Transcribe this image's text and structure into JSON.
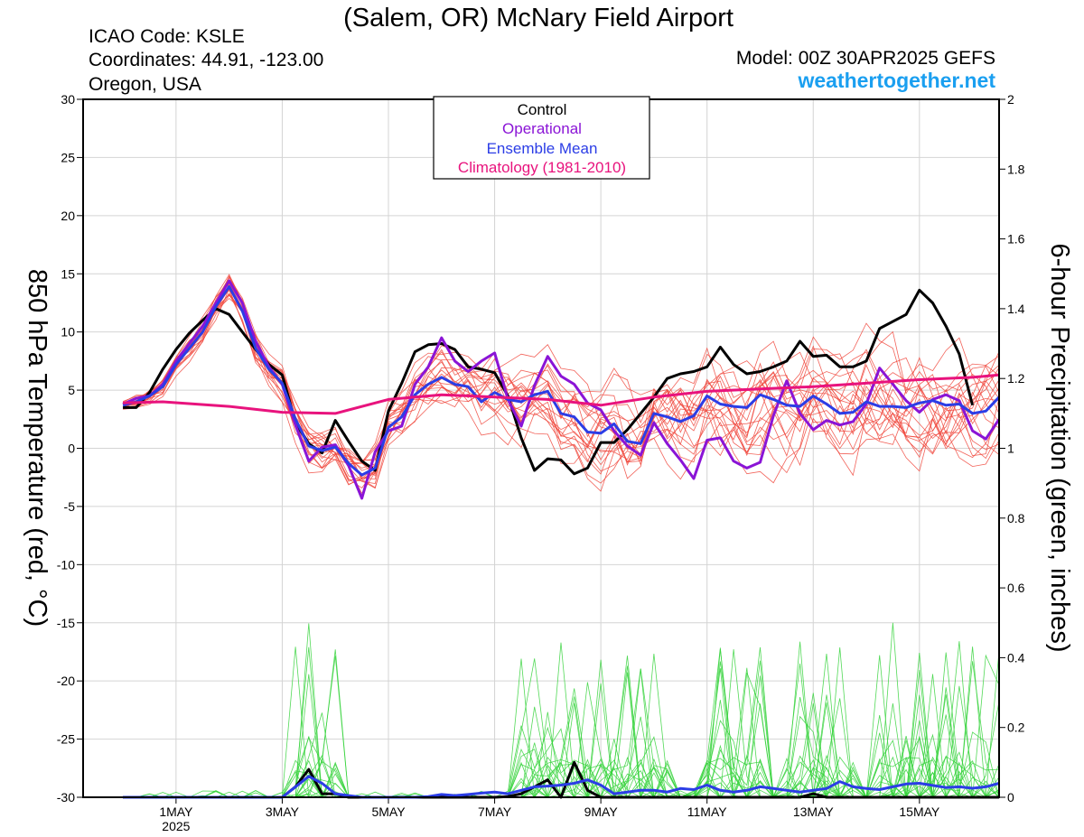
{
  "header": {
    "title": "(Salem, OR) McNary Field Airport",
    "icao": "ICAO Code: KSLE",
    "coords": "Coordinates: 44.91, -123.00",
    "region": "Oregon, USA",
    "model": "Model: 00Z 30APR2025 GEFS",
    "site": "weathertogether.net"
  },
  "legend": {
    "items": [
      {
        "label": "Control",
        "color": "#000000"
      },
      {
        "label": "Operational",
        "color": "#8a14d6"
      },
      {
        "label": "Ensemble Mean",
        "color": "#2b3de6"
      },
      {
        "label": "Climatology (1981-2010)",
        "color": "#e8137d"
      }
    ]
  },
  "colors": {
    "ensemble_temp": "#f0463c",
    "ensemble_precip": "#34d23a",
    "control": "#000000",
    "operational": "#8a14d6",
    "mean": "#2b3de6",
    "climatology": "#e8137d"
  },
  "chart_data": {
    "type": "line",
    "ylabel_left": "850 hPa Temperature (red, °C)",
    "ylabel_right": "6-hour Precipitation (green, inches)",
    "xlim_hours": [
      -18,
      396
    ],
    "ylim_left": [
      -30,
      30
    ],
    "ylim_right": [
      0,
      2
    ],
    "x_ticks": [
      {
        "label": "1MAY",
        "sub": "2025",
        "hour": 24
      },
      {
        "label": "3MAY",
        "hour": 72
      },
      {
        "label": "5MAY",
        "hour": 120
      },
      {
        "label": "7MAY",
        "hour": 168
      },
      {
        "label": "9MAY",
        "hour": 216
      },
      {
        "label": "11MAY",
        "hour": 264
      },
      {
        "label": "13MAY",
        "hour": 312
      },
      {
        "label": "15MAY",
        "hour": 360
      }
    ],
    "y_ticks_left": [
      30,
      25,
      20,
      15,
      10,
      5,
      0,
      -5,
      -10,
      -15,
      -20,
      -25,
      -30
    ],
    "y_ticks_right": [
      "2",
      "1.8",
      "1.6",
      "1.4",
      "1.2",
      "1",
      "0.8",
      "0.6",
      "0.4",
      "0.2",
      "0"
    ],
    "temperature_series": [
      {
        "name": "Control",
        "x": [
          0,
          6,
          12,
          18,
          24,
          30,
          36,
          42,
          48,
          54,
          60,
          66,
          72,
          78,
          84,
          90,
          96,
          102,
          108,
          114,
          120,
          126,
          132,
          138,
          144,
          150,
          156,
          162,
          168,
          174,
          180,
          186,
          192,
          198,
          204,
          210,
          216,
          222,
          228,
          234,
          240,
          246,
          252,
          258,
          264,
          270,
          276,
          282,
          288,
          294,
          300,
          306,
          312,
          318,
          324,
          330,
          336,
          342,
          348,
          354,
          360,
          366,
          372,
          378,
          384
        ],
        "y": [
          3.5,
          3.5,
          4.8,
          6.8,
          8.5,
          9.9,
          11,
          12,
          11.5,
          10,
          8.5,
          7.2,
          6.3,
          2.2,
          0.4,
          -0.4,
          2.4,
          0.6,
          -1.1,
          -1.9,
          3.2,
          5.6,
          8.3,
          8.9,
          9,
          8.5,
          7,
          6.8,
          6.5,
          4.5,
          0.9,
          -1.9,
          -0.9,
          -1,
          -2.2,
          -1.7,
          0.5,
          0.5,
          1.6,
          3,
          4.4,
          6,
          6.4,
          6.6,
          7,
          8.7,
          7.2,
          6.4,
          6.6,
          7,
          7.5,
          9.2,
          7.9,
          8,
          7,
          7,
          7.5,
          10.3,
          10.9,
          11.5,
          13.6,
          12.5,
          10.5,
          8.1,
          3.7
        ]
      },
      {
        "name": "Operational",
        "x": [
          0,
          6,
          12,
          18,
          24,
          30,
          36,
          42,
          48,
          54,
          60,
          66,
          72,
          78,
          84,
          90,
          96,
          102,
          108,
          114,
          120,
          126,
          132,
          138,
          144,
          150,
          156,
          162,
          168,
          174,
          180,
          186,
          192,
          198,
          204,
          210,
          216,
          222,
          228,
          234,
          240,
          246,
          252,
          258,
          264,
          270,
          276,
          282,
          288,
          294,
          300,
          306,
          312,
          318,
          324,
          330,
          336,
          342,
          348,
          354,
          360,
          366,
          372,
          378,
          384,
          390,
          396
        ],
        "y": [
          3.8,
          4.3,
          4.5,
          5.5,
          7.5,
          9,
          10.5,
          12.5,
          14.4,
          12.5,
          9.2,
          7,
          5.5,
          2,
          -1.1,
          0.1,
          0.3,
          -1.5,
          -4.3,
          -0.3,
          1.5,
          1.9,
          5.5,
          7,
          9.5,
          7.5,
          6.6,
          7.5,
          8.2,
          4.2,
          1.9,
          5.4,
          7.9,
          6.2,
          5.5,
          3.9,
          3.3,
          1.5,
          0.2,
          -0.6,
          2.2,
          0.4,
          -1,
          -2.6,
          0.7,
          0.9,
          -1.1,
          -1.7,
          -1.2,
          2.8,
          5.8,
          3,
          1.6,
          2.4,
          2,
          2.3,
          3.8,
          6.9,
          5.5,
          4.1,
          3.1,
          4.2,
          4.6,
          4.1,
          1.5,
          0.8,
          2.5
        ]
      },
      {
        "name": "Ensemble Mean",
        "x": [
          0,
          6,
          12,
          18,
          24,
          30,
          36,
          42,
          48,
          54,
          60,
          66,
          72,
          78,
          84,
          90,
          96,
          102,
          108,
          114,
          120,
          126,
          132,
          138,
          144,
          150,
          156,
          162,
          168,
          174,
          180,
          186,
          192,
          198,
          204,
          210,
          216,
          222,
          228,
          234,
          240,
          246,
          252,
          258,
          264,
          270,
          276,
          282,
          288,
          294,
          300,
          306,
          312,
          318,
          324,
          330,
          336,
          342,
          348,
          354,
          360,
          366,
          372,
          378,
          384,
          390,
          396
        ],
        "y": [
          3.7,
          4,
          4.5,
          5.3,
          7.2,
          8.6,
          10,
          12.2,
          13.9,
          11.8,
          8.6,
          6.8,
          5.6,
          2.5,
          0.2,
          -0.2,
          0.1,
          -1.3,
          -2.3,
          -1.7,
          1.8,
          2.7,
          4.6,
          5.5,
          6.1,
          5.5,
          5.3,
          4,
          4.8,
          4.2,
          4,
          4.6,
          4.9,
          3,
          2.7,
          1.4,
          1.3,
          2.1,
          0.6,
          0.4,
          3,
          2.7,
          2.3,
          2.8,
          4.5,
          3.8,
          3.6,
          3.5,
          4.6,
          4.2,
          3.7,
          3.6,
          4.5,
          3.8,
          3,
          3.1,
          4,
          3.6,
          3.6,
          3.5,
          3.9,
          4.1,
          3.7,
          3.8,
          3,
          3.2,
          4.4
        ]
      },
      {
        "name": "Climatology (1981-2010)",
        "x": [
          0,
          18,
          48,
          72,
          96,
          120,
          144,
          168,
          192,
          216,
          240,
          264,
          288,
          312,
          336,
          360,
          384,
          396
        ],
        "y": [
          3.9,
          4,
          3.6,
          3.1,
          3,
          4.2,
          4.6,
          4.4,
          4.2,
          3.7,
          4.4,
          4.9,
          5.1,
          5.3,
          5.6,
          5.9,
          6.1,
          6.3
        ]
      }
    ],
    "precip_series": [
      {
        "name": "Control",
        "x": [
          0,
          6,
          12,
          18,
          24,
          30,
          36,
          42,
          48,
          54,
          60,
          66,
          72,
          78,
          84,
          90,
          96,
          102,
          108,
          114,
          120,
          126,
          132,
          138,
          144,
          150,
          156,
          162,
          168,
          174,
          180,
          186,
          192,
          198,
          204,
          210,
          216,
          222,
          228,
          234,
          240,
          246,
          252,
          258,
          264,
          270,
          276,
          282,
          288,
          294,
          300,
          306,
          312,
          318,
          324,
          330,
          336,
          342,
          348,
          354,
          360,
          366,
          372,
          378,
          384,
          390,
          396
        ],
        "y": [
          0,
          0,
          0,
          0,
          0,
          0,
          0,
          0,
          0,
          0,
          0,
          0,
          0,
          0.03,
          0.08,
          0.01,
          0.01,
          0,
          0,
          0,
          0,
          0,
          0,
          0,
          0,
          0,
          0,
          0,
          0,
          0.002,
          0.01,
          0.03,
          0.05,
          0,
          0.1,
          0.02,
          0,
          0,
          0,
          0,
          0,
          0,
          0,
          0,
          0,
          0,
          0,
          0,
          0,
          0,
          0,
          0,
          0.01,
          0,
          0,
          0,
          0,
          0,
          0,
          0,
          0,
          0,
          0,
          0,
          0,
          0,
          0
        ]
      },
      {
        "name": "Ensemble Mean",
        "x": [
          0,
          6,
          12,
          18,
          24,
          30,
          36,
          42,
          48,
          54,
          60,
          66,
          72,
          78,
          84,
          90,
          96,
          102,
          108,
          114,
          120,
          126,
          132,
          138,
          144,
          150,
          156,
          162,
          168,
          174,
          180,
          186,
          192,
          198,
          204,
          210,
          216,
          222,
          228,
          234,
          240,
          246,
          252,
          258,
          264,
          270,
          276,
          282,
          288,
          294,
          300,
          306,
          312,
          318,
          324,
          330,
          336,
          342,
          348,
          354,
          360,
          366,
          372,
          378,
          384,
          390,
          396
        ],
        "y": [
          0,
          0,
          0,
          0,
          0,
          0,
          0,
          0,
          0,
          0,
          0,
          0,
          0,
          0.03,
          0.06,
          0.04,
          0.01,
          0.005,
          0,
          0,
          0,
          0,
          0,
          0.002,
          0.008,
          0.005,
          0.008,
          0.012,
          0.015,
          0.01,
          0.02,
          0.03,
          0.032,
          0.035,
          0.04,
          0.05,
          0.035,
          0.01,
          0.015,
          0.02,
          0.02,
          0.015,
          0.025,
          0.022,
          0.035,
          0.02,
          0.015,
          0.02,
          0.03,
          0.025,
          0.02,
          0.015,
          0.02,
          0.025,
          0.045,
          0.03,
          0.025,
          0.022,
          0.03,
          0.038,
          0.04,
          0.034,
          0.028,
          0.03,
          0.026,
          0.03,
          0.04
        ]
      }
    ]
  }
}
